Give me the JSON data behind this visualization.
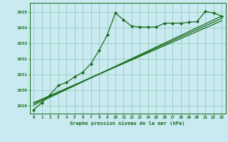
{
  "bg_color": "#c8eaf0",
  "grid_color": "#99ccbb",
  "line_color": "#1a6b1a",
  "marker_color": "#1a6b1a",
  "title": "Graphe pression niveau de la mer (hPa)",
  "xlim": [
    -0.5,
    23.5
  ],
  "ylim": [
    1028.5,
    1035.6
  ],
  "yticks": [
    1029,
    1030,
    1031,
    1032,
    1033,
    1034,
    1035
  ],
  "xticks": [
    0,
    1,
    2,
    3,
    4,
    5,
    6,
    7,
    8,
    9,
    10,
    11,
    12,
    13,
    14,
    15,
    16,
    17,
    18,
    19,
    20,
    21,
    22,
    23
  ],
  "series1_x": [
    0,
    1,
    2,
    3,
    4,
    5,
    6,
    7,
    8,
    9,
    10,
    11,
    12,
    13,
    14,
    15,
    16,
    17,
    18,
    19,
    20,
    21,
    22,
    23
  ],
  "series1_y": [
    1028.75,
    1029.2,
    1029.7,
    1030.3,
    1030.5,
    1030.85,
    1031.15,
    1031.7,
    1032.55,
    1033.55,
    1034.95,
    1034.5,
    1034.1,
    1034.05,
    1034.05,
    1034.05,
    1034.3,
    1034.3,
    1034.3,
    1034.35,
    1034.4,
    1035.05,
    1034.95,
    1034.75
  ],
  "series2_x": [
    0,
    23
  ],
  "series2_y": [
    1029.05,
    1034.75
  ],
  "series3_x": [
    0,
    23
  ],
  "series3_y": [
    1029.15,
    1034.6
  ],
  "series4_x": [
    0,
    23
  ],
  "series4_y": [
    1029.2,
    1034.45
  ]
}
